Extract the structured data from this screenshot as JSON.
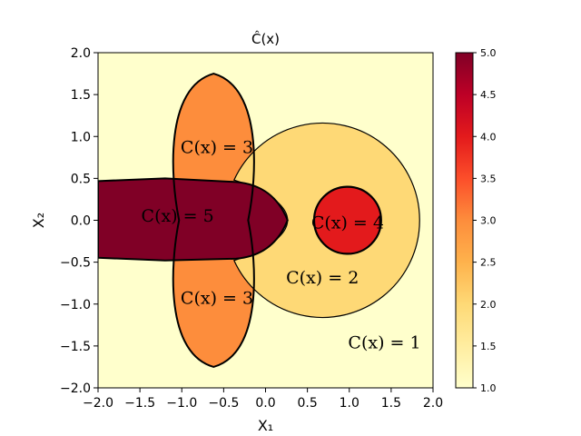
{
  "chart_data": {
    "type": "heatmap",
    "title": "Ĉ(x)",
    "xlabel": "X₁",
    "ylabel": "X₂",
    "xlim": [
      -2.0,
      2.0
    ],
    "ylim": [
      -2.0,
      2.0
    ],
    "xticks": [
      "−2.0",
      "−1.5",
      "−1.0",
      "−0.5",
      "0.0",
      "0.5",
      "1.0",
      "1.5",
      "2.0"
    ],
    "yticks": [
      "−2.0",
      "−1.5",
      "−1.0",
      "−0.5",
      "0.0",
      "0.5",
      "1.0",
      "1.5",
      "2.0"
    ],
    "colorbar": {
      "range": [
        1.0,
        5.0
      ],
      "ticks": [
        "1.0",
        "1.5",
        "2.0",
        "2.5",
        "3.0",
        "3.5",
        "4.0",
        "4.5",
        "5.0"
      ],
      "colormap": "YlOrRd",
      "stops": [
        "#ffffcc",
        "#ffeda0",
        "#fed976",
        "#feb24c",
        "#fd8d3c",
        "#fc4e2a",
        "#e31a1c",
        "#bd0026",
        "#800026"
      ]
    },
    "regions": [
      {
        "label": "C(x) = 1",
        "value": 1,
        "label_at": [
          1.42,
          -1.45
        ]
      },
      {
        "label": "C(x) = 2",
        "value": 2,
        "label_at": [
          0.68,
          -0.68
        ]
      },
      {
        "label": "C(x) = 3",
        "value": 3,
        "label_at": [
          -0.58,
          0.88
        ]
      },
      {
        "label": "C(x) = 3",
        "value": 3,
        "label_at": [
          -0.58,
          -0.92
        ]
      },
      {
        "label": "C(x) = 4",
        "value": 4,
        "label_at": [
          0.98,
          -0.02
        ]
      },
      {
        "label": "C(x) = 5",
        "value": 5,
        "label_at": [
          -1.05,
          0.06
        ]
      }
    ],
    "boundaries": {
      "disk_center": [
        0.68,
        0.0
      ],
      "outer_circle_radius": 1.16,
      "inner_circle_center": [
        0.98,
        0.0
      ],
      "inner_circle_radius": 0.4,
      "lobe_center_x": -0.62,
      "lobe_tip_y": 1.75
    },
    "grid": false,
    "legend": "none"
  }
}
